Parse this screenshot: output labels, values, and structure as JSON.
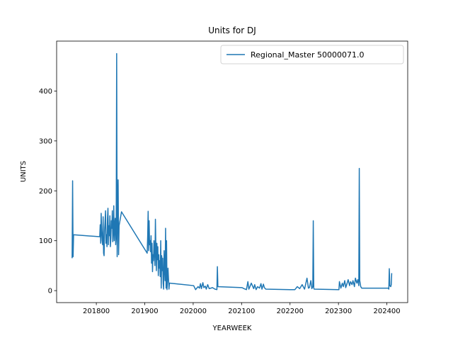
{
  "chart_data": {
    "type": "line",
    "title": "Units for DJ",
    "x_label": "YEARWEEK",
    "y_label": "UNITS",
    "x": [
      201750,
      201751,
      201752,
      201753,
      201807,
      201808,
      201809,
      201810,
      201811,
      201812,
      201813,
      201814,
      201815,
      201816,
      201817,
      201818,
      201819,
      201820,
      201821,
      201822,
      201823,
      201824,
      201825,
      201826,
      201827,
      201828,
      201829,
      201830,
      201831,
      201832,
      201833,
      201834,
      201835,
      201836,
      201837,
      201838,
      201839,
      201840,
      201841,
      201842,
      201843,
      201844,
      201845,
      201846,
      201847,
      201852,
      201905,
      201906,
      201907,
      201908,
      201909,
      201910,
      201911,
      201912,
      201913,
      201914,
      201915,
      201916,
      201917,
      201918,
      201919,
      201920,
      201921,
      201922,
      201923,
      201924,
      201925,
      201926,
      201927,
      201928,
      201929,
      201930,
      201931,
      201932,
      201933,
      201934,
      201935,
      201936,
      201937,
      201938,
      201939,
      201940,
      201941,
      201942,
      201943,
      201944,
      201945,
      201946,
      201948,
      201950,
      201951,
      202001,
      202005,
      202010,
      202013,
      202015,
      202017,
      202020,
      202022,
      202025,
      202027,
      202030,
      202033,
      202040,
      202045,
      202049,
      202050,
      202051,
      202101,
      202105,
      202110,
      202113,
      202115,
      202118,
      202120,
      202125,
      202127,
      202130,
      202133,
      202137,
      202140,
      202142,
      202145,
      202147,
      202150,
      202201,
      202210,
      202215,
      202220,
      202225,
      202230,
      202235,
      202238,
      202240,
      202243,
      202245,
      202247,
      202248,
      202249,
      202250,
      202301,
      202302,
      202305,
      202308,
      202310,
      202313,
      202315,
      202318,
      202320,
      202323,
      202325,
      202328,
      202330,
      202333,
      202335,
      202338,
      202340,
      202342,
      202343,
      202344,
      202346,
      202348,
      202350,
      202352,
      202401,
      202402,
      202403,
      202404,
      202405,
      202406,
      202408,
      202409,
      202410
    ],
    "series": [
      {
        "name": "Regional_Master 50000071.0",
        "color": "#1f77b4",
        "values": [
          65,
          220,
          68,
          112,
          108,
          132,
          95,
          155,
          120,
          100,
          92,
          148,
          75,
          70,
          120,
          138,
          160,
          95,
          112,
          88,
          145,
          165,
          92,
          130,
          110,
          150,
          88,
          105,
          140,
          125,
          160,
          98,
          118,
          170,
          100,
          130,
          145,
          92,
          108,
          475,
          68,
          160,
          222,
          72,
          130,
          158,
          75,
          108,
          159,
          80,
          140,
          92,
          100,
          78,
          110,
          55,
          95,
          38,
          72,
          60,
          100,
          80,
          50,
          143,
          85,
          40,
          95,
          62,
          88,
          30,
          72,
          45,
          60,
          28,
          100,
          5,
          70,
          40,
          65,
          15,
          3,
          80,
          50,
          20,
          125,
          5,
          100,
          2,
          45,
          3,
          15,
          10,
          2,
          8,
          5,
          14,
          4,
          16,
          6,
          9,
          3,
          12,
          4,
          6,
          3,
          2,
          48,
          8,
          6,
          4,
          2,
          18,
          3,
          10,
          15,
          4,
          12,
          2,
          8,
          5,
          14,
          3,
          13,
          6,
          3,
          2,
          2,
          8,
          4,
          12,
          3,
          25,
          5,
          6,
          20,
          4,
          8,
          140,
          5,
          3,
          2,
          18,
          5,
          15,
          8,
          20,
          6,
          15,
          22,
          10,
          18,
          12,
          20,
          8,
          25,
          15,
          22,
          10,
          245,
          20,
          8,
          5,
          5,
          5,
          5,
          5,
          5,
          3,
          44,
          10,
          8,
          12,
          35
        ]
      }
    ],
    "xlim": [
      201718,
      202443
    ],
    "ylim": [
      -24,
      500
    ],
    "xticks": [
      201800,
      201900,
      202000,
      202100,
      202200,
      202300,
      202400
    ],
    "yticks": [
      0,
      100,
      200,
      300,
      400
    ],
    "legend": "upper right"
  }
}
